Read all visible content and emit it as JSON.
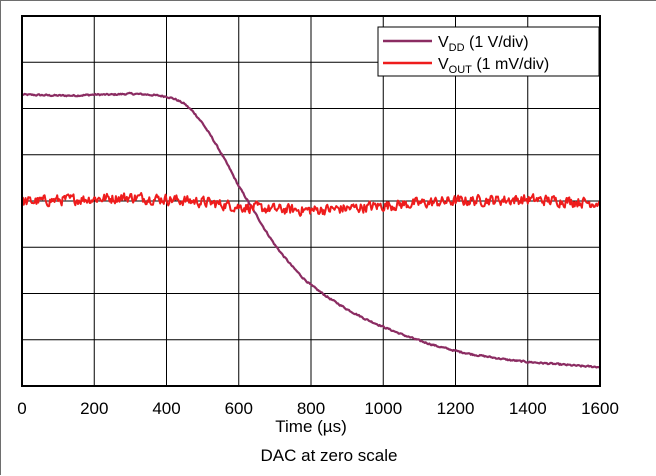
{
  "chart_data": {
    "type": "line",
    "xlabel": "Time (µs)",
    "xlim": [
      0,
      1600
    ],
    "x_ticks": [
      "0",
      "200",
      "400",
      "600",
      "800",
      "1000",
      "1200",
      "1400",
      "1600"
    ],
    "y_divisions": 8,
    "grid": true,
    "legend_position": "top-right",
    "caption": "DAC at zero scale",
    "series": [
      {
        "name": "VDD (1 V/div)",
        "label_main": "V",
        "label_sub": "DD",
        "label_rest": " (1 V/div)",
        "color": "#8b2c62",
        "unit": "div",
        "x": [
          0,
          50,
          100,
          150,
          200,
          250,
          300,
          350,
          400,
          425,
          450,
          475,
          500,
          525,
          550,
          575,
          600,
          625,
          650,
          675,
          700,
          725,
          750,
          775,
          800,
          850,
          900,
          950,
          1000,
          1050,
          1100,
          1150,
          1200,
          1250,
          1300,
          1350,
          1400,
          1450,
          1500,
          1550,
          1600
        ],
        "y": [
          6.3,
          6.29,
          6.28,
          6.28,
          6.3,
          6.3,
          6.32,
          6.3,
          6.26,
          6.2,
          6.1,
          5.92,
          5.68,
          5.38,
          5.05,
          4.7,
          4.32,
          4.0,
          3.68,
          3.35,
          3.05,
          2.8,
          2.57,
          2.36,
          2.18,
          1.9,
          1.66,
          1.45,
          1.28,
          1.12,
          0.98,
          0.86,
          0.76,
          0.68,
          0.62,
          0.56,
          0.52,
          0.49,
          0.46,
          0.43,
          0.41
        ]
      },
      {
        "name": "VOUT (1 mV/div)",
        "label_main": "V",
        "label_sub": "OUT",
        "label_rest": " (1 mV/div)",
        "color": "#ee1c1c",
        "unit": "div",
        "x": [
          0,
          100,
          200,
          300,
          400,
          500,
          600,
          700,
          800,
          900,
          1000,
          1100,
          1200,
          1300,
          1400,
          1500,
          1600
        ],
        "y": [
          3.98,
          4.02,
          4.05,
          4.08,
          4.04,
          3.98,
          3.88,
          3.82,
          3.8,
          3.84,
          3.9,
          3.95,
          4.0,
          4.02,
          4.03,
          4.0,
          3.96
        ],
        "noise_div": 0.13
      }
    ]
  }
}
